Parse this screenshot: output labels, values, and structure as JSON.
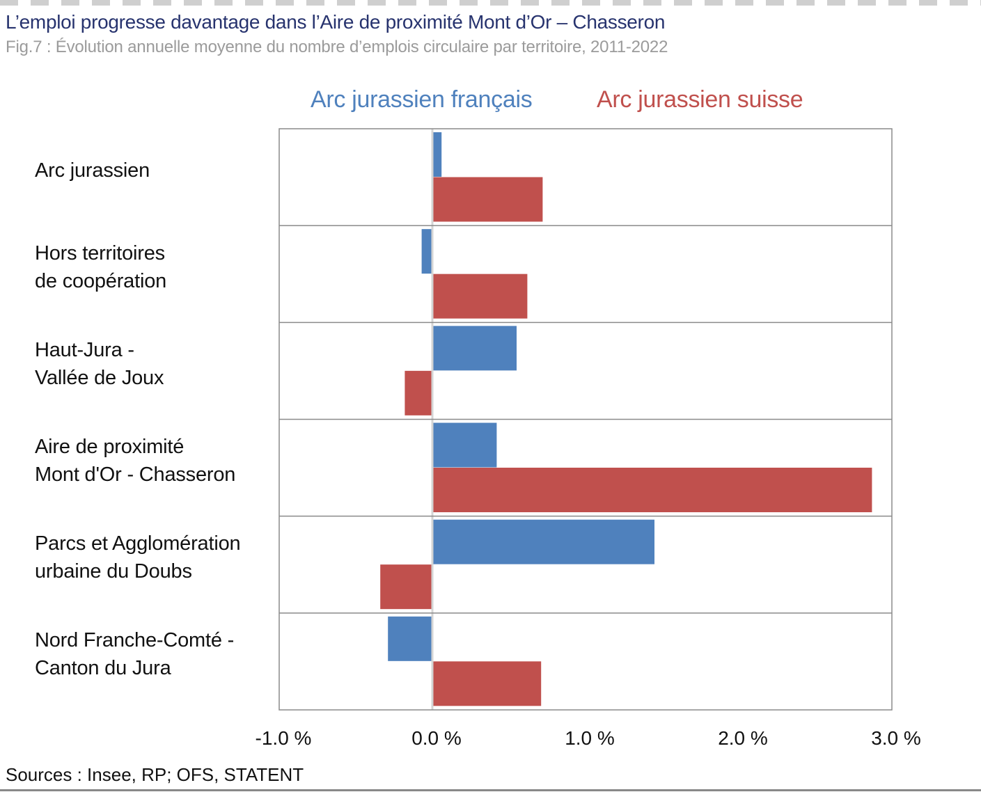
{
  "header": {
    "title": "L’emploi progresse davantage dans l’Aire de proximité Mont d’Or – Chasseron",
    "subtitle": "Fig.7 : Évolution annuelle moyenne du nombre d’emplois circulaire par territoire, 2011-2022"
  },
  "footer": {
    "source": "Sources : Insee, RP; OFS, STATENT"
  },
  "chart_data": {
    "type": "bar",
    "orientation": "horizontal",
    "title": "L’emploi progresse davantage dans l’Aire de proximité Mont d’Or – Chasseron",
    "subtitle": "Fig.7 : Évolution annuelle moyenne du nombre d’emplois circulaire par territoire, 2011-2022",
    "categories": [
      "Arc jurassien",
      "Hors territoires\nde coopération",
      "Haut-Jura -\nVallée de Joux",
      "Aire de proximité\nMont d'Or - Chasseron",
      "Parcs et Agglomération\nurbaine du Doubs",
      "Nord Franche-Comté -\nCanton du Jura"
    ],
    "series": [
      {
        "name": "Arc jurassien français",
        "color": "#4f81bd",
        "values": [
          0.06,
          -0.07,
          0.55,
          0.42,
          1.45,
          -0.29
        ]
      },
      {
        "name": "Arc jurassien suisse",
        "color": "#c0504d",
        "values": [
          0.72,
          0.62,
          -0.18,
          2.87,
          -0.34,
          0.71
        ]
      }
    ],
    "xlim": [
      -1.0,
      3.0
    ],
    "xticks": [
      -1.0,
      0.0,
      1.0,
      2.0,
      3.0
    ],
    "xtick_labels": [
      "-1.0 %",
      "0.0 %",
      "1.0 %",
      "2.0 %",
      "3.0 %"
    ],
    "xlabel": "",
    "ylabel": "",
    "legend": "top",
    "grid": "horizontal separators between categories"
  }
}
